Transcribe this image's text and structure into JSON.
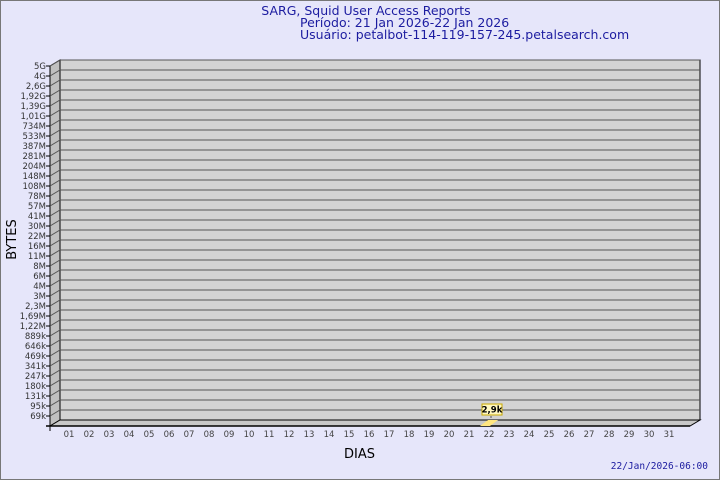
{
  "header": {
    "title": "SARG, Squid User Access Reports",
    "period": "Período: 21 Jan 2026-22 Jan 2026",
    "user": "Usuário: petalbot-114-119-157-245.petalsearch.com"
  },
  "footer": {
    "timestamp": "22/Jan/2026-06:00"
  },
  "colors": {
    "background": "#e6e6fa",
    "plot": "#d3d3d3",
    "text": "#1c1ca0",
    "bar": "#ffe680"
  },
  "chart_data": {
    "type": "bar",
    "title": "",
    "xlabel": "DIAS",
    "ylabel": "BYTES",
    "y_scale": "log",
    "grid": true,
    "y_tick_labels": [
      "5G",
      "4G",
      "2,6G",
      "1,92G",
      "1,39G",
      "1,01G",
      "734M",
      "533M",
      "387M",
      "281M",
      "204M",
      "148M",
      "108M",
      "78M",
      "57M",
      "41M",
      "30M",
      "22M",
      "16M",
      "11M",
      "8M",
      "6M",
      "4M",
      "3M",
      "2,3M",
      "1,69M",
      "1,22M",
      "889k",
      "646k",
      "469k",
      "341k",
      "247k",
      "180k",
      "131k",
      "95k",
      "69k"
    ],
    "categories": [
      "01",
      "02",
      "03",
      "04",
      "05",
      "06",
      "07",
      "08",
      "09",
      "10",
      "11",
      "12",
      "13",
      "14",
      "15",
      "16",
      "17",
      "18",
      "19",
      "20",
      "21",
      "22",
      "23",
      "24",
      "25",
      "26",
      "27",
      "28",
      "29",
      "30",
      "31"
    ],
    "values": [
      0,
      0,
      0,
      0,
      0,
      0,
      0,
      0,
      0,
      0,
      0,
      0,
      0,
      0,
      0,
      0,
      0,
      0,
      0,
      0,
      0,
      2900,
      0,
      0,
      0,
      0,
      0,
      0,
      0,
      0,
      0
    ],
    "data_labels": {
      "22": "2,9k"
    }
  }
}
